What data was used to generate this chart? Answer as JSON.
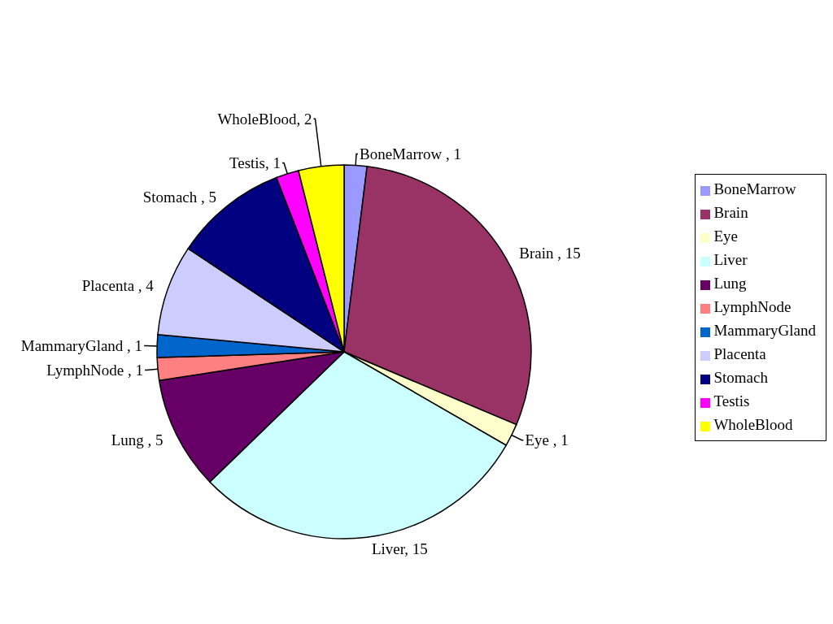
{
  "chart_data": {
    "type": "pie",
    "categories": [
      "BoneMarrow",
      "Brain",
      "Eye",
      "Liver",
      "Lung",
      "LymphNode",
      "MammaryGland",
      "Placenta",
      "Stomach",
      "Testis",
      "WholeBlood"
    ],
    "values": [
      1,
      15,
      1,
      15,
      5,
      1,
      1,
      4,
      5,
      1,
      2
    ],
    "colors": [
      "#9999ff",
      "#993366",
      "#ffffcc",
      "#ccffff",
      "#660066",
      "#ff8080",
      "#0066cc",
      "#ccccff",
      "#000080",
      "#ff00ff",
      "#ffff00"
    ],
    "value_labels": [
      "BoneMarrow , 1",
      "Brain , 15",
      "Eye , 1",
      "Liver, 15",
      "Lung , 5",
      "LymphNode , 1",
      "MammaryGland , 1",
      "Placenta , 4",
      "Stomach , 5",
      "Testis, 1",
      "WholeBlood, 2"
    ],
    "legend": "right"
  }
}
